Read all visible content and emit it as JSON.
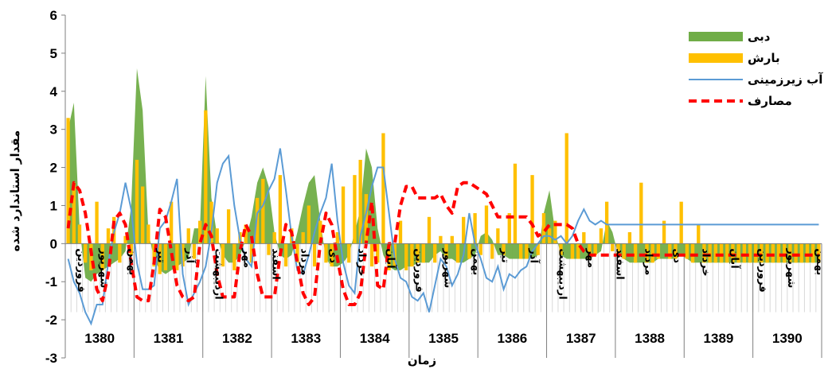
{
  "chart_data": {
    "type": "area",
    "xlabel": "زمان",
    "ylabel": "مقدار استاندارد شده",
    "ylim": [
      -3,
      6
    ],
    "yticks": [
      -3,
      -2,
      -1,
      0,
      1,
      2,
      3,
      4,
      5,
      6
    ],
    "months_per_year": 12,
    "years": [
      "1380",
      "1381",
      "1382",
      "1383",
      "1384",
      "1385",
      "1386",
      "1387",
      "1388",
      "1389",
      "1390"
    ],
    "month_labels": [
      {
        "index": 1,
        "text": "فروردین"
      },
      {
        "index": 5,
        "text": "شهریور"
      },
      {
        "index": 10,
        "text": "بهمن"
      },
      {
        "index": 15,
        "text": "تیر"
      },
      {
        "index": 20,
        "text": "آذر"
      },
      {
        "index": 25,
        "text": "اردیبهشت"
      },
      {
        "index": 30,
        "text": "مهر"
      },
      {
        "index": 35,
        "text": "اسفند"
      },
      {
        "index": 40,
        "text": "مرداد"
      },
      {
        "index": 45,
        "text": "دی"
      },
      {
        "index": 50,
        "text": "خرداد"
      },
      {
        "index": 55,
        "text": "آبان"
      },
      {
        "index": 60,
        "text": "فروردین"
      },
      {
        "index": 65,
        "text": "شهریور"
      },
      {
        "index": 70,
        "text": "بهمن"
      },
      {
        "index": 75,
        "text": "تیر"
      },
      {
        "index": 80,
        "text": "آذر"
      },
      {
        "index": 85,
        "text": "اردیبهشت"
      },
      {
        "index": 90,
        "text": "مهر"
      },
      {
        "index": 95,
        "text": "اسفند"
      },
      {
        "index": 100,
        "text": "مرداد"
      },
      {
        "index": 105,
        "text": "دی"
      },
      {
        "index": 110,
        "text": "خرداد"
      },
      {
        "index": 115,
        "text": "آبان"
      },
      {
        "index": 120,
        "text": "فروردین"
      },
      {
        "index": 125,
        "text": "شهریور"
      },
      {
        "index": 130,
        "text": "بهمن"
      }
    ],
    "series": [
      {
        "name": "دبی",
        "kind": "area",
        "color": "#70ad47",
        "values": [
          3.0,
          3.7,
          0.4,
          -0.9,
          -1.0,
          -0.8,
          -0.7,
          -0.6,
          -0.5,
          -0.4,
          -0.2,
          1.0,
          4.6,
          3.5,
          0.3,
          -0.4,
          -0.7,
          -0.8,
          -0.7,
          -0.6,
          -0.5,
          -0.4,
          0.4,
          0.4,
          4.4,
          1.2,
          0.2,
          -0.3,
          -0.5,
          -0.5,
          -0.3,
          0.1,
          0.7,
          1.6,
          2.0,
          1.5,
          0.3,
          -0.3,
          -0.4,
          -0.3,
          0.3,
          1.0,
          1.6,
          1.8,
          0.6,
          -0.4,
          -0.6,
          -0.6,
          -0.5,
          -0.3,
          0.3,
          0.9,
          2.5,
          2.0,
          0.4,
          -0.3,
          -0.6,
          -0.7,
          -0.7,
          -0.6,
          -0.6,
          -0.5,
          -0.5,
          -0.5,
          -0.3,
          -0.2,
          -0.4,
          -0.4,
          -0.5,
          -0.5,
          -0.4,
          -0.3,
          0.2,
          0.3,
          0.1,
          -0.3,
          -0.3,
          -0.4,
          -0.4,
          -0.4,
          -0.4,
          -0.4,
          -0.3,
          0.8,
          1.4,
          0.3,
          -0.3,
          -0.4,
          -0.4,
          -0.4,
          -0.4,
          -0.4,
          -0.3,
          -0.2,
          0.6,
          0.3,
          -0.3,
          -0.4,
          -0.5,
          -0.5,
          -0.5,
          -0.5,
          -0.5,
          -0.4,
          -0.4,
          -0.4,
          -0.4,
          -0.3,
          -0.4,
          -0.5,
          -0.5,
          -0.5,
          -0.5,
          -0.5,
          -0.5,
          -0.5,
          -0.5,
          -0.5,
          -0.5,
          -0.5,
          -0.5,
          -0.5,
          -0.5,
          -0.5,
          -0.5,
          -0.5,
          -0.5,
          -0.5,
          -0.5,
          -0.5,
          -0.5,
          -0.5
        ]
      },
      {
        "name": "بارش",
        "kind": "bar",
        "color": "#ffc000",
        "values": [
          3.3,
          1.6,
          0.5,
          -0.5,
          -0.7,
          1.1,
          -0.7,
          0.4,
          0.7,
          -0.5,
          0.2,
          -0.3,
          2.2,
          1.5,
          0.5,
          -0.6,
          -0.8,
          -0.7,
          1.1,
          -0.7,
          -0.6,
          0.4,
          -0.4,
          0.6,
          3.5,
          1.1,
          0.4,
          -0.6,
          0.9,
          -0.7,
          0.3,
          0.5,
          -0.5,
          1.2,
          1.7,
          -0.3,
          0.3,
          1.8,
          -0.6,
          0.4,
          -0.5,
          0.3,
          1.0,
          -0.6,
          0.6,
          -0.5,
          -0.6,
          0.3,
          1.5,
          -0.5,
          1.8,
          2.2,
          1.3,
          -0.6,
          -0.5,
          2.9,
          -0.7,
          -0.6,
          0.6,
          -0.7,
          -0.6,
          -0.5,
          -0.5,
          0.7,
          -0.5,
          0.2,
          -0.4,
          0.2,
          -0.5,
          0.7,
          -0.4,
          0.8,
          -0.3,
          1.0,
          -0.4,
          0.4,
          -0.3,
          0.8,
          2.1,
          -0.4,
          -0.4,
          1.8,
          -0.3,
          0.8,
          0.4,
          0.6,
          -0.3,
          2.9,
          -0.4,
          -0.4,
          0.3,
          -0.4,
          -0.3,
          0.4,
          1.1,
          -0.2,
          -0.3,
          -0.4,
          0.3,
          -0.5,
          1.6,
          -0.5,
          -0.5,
          -0.4,
          0.6,
          -0.4,
          -0.4,
          1.1,
          -0.4,
          -0.5,
          0.5,
          -0.5,
          -0.5,
          -0.5,
          -0.5,
          -0.5,
          -0.5,
          -0.5,
          -0.5,
          -0.5,
          -0.5,
          -0.5,
          -0.5,
          -0.5,
          -0.5,
          -0.5,
          -0.5,
          -0.5,
          -0.5,
          -0.5,
          -0.5,
          -0.5
        ]
      },
      {
        "name": "آب زیرزمینی",
        "kind": "line",
        "color": "#5b9bd5",
        "values": [
          -0.4,
          -1.0,
          -1.3,
          -1.8,
          -2.1,
          -1.6,
          -1.6,
          -0.5,
          0.3,
          0.8,
          1.6,
          0.9,
          -0.5,
          -1.2,
          -1.2,
          -1.1,
          0.4,
          0.6,
          1.1,
          1.7,
          -0.8,
          -1.6,
          -1.3,
          -1.0,
          -0.6,
          0.3,
          1.6,
          2.1,
          2.3,
          1.0,
          0.1,
          -0.4,
          -0.6,
          0.8,
          1.0,
          1.4,
          1.7,
          2.5,
          1.4,
          0.2,
          -0.7,
          -0.8,
          -0.3,
          0.3,
          0.8,
          1.2,
          2.1,
          0.6,
          -0.5,
          -1.1,
          -1.3,
          0.2,
          0.8,
          1.5,
          2.0,
          2.0,
          0.8,
          -0.4,
          -0.9,
          -1.0,
          -1.4,
          -1.5,
          -1.3,
          -1.8,
          -1.1,
          -0.4,
          -0.6,
          -1.1,
          -0.8,
          -0.3,
          0.8,
          0.0,
          -0.4,
          -0.9,
          -1.0,
          -0.6,
          -1.2,
          -0.8,
          -0.9,
          -0.7,
          -0.6,
          -0.2,
          0.0,
          0.2,
          0.2,
          0.1,
          0.2,
          0.0,
          0.2,
          0.6,
          0.9,
          0.6,
          0.5,
          0.6,
          0.5,
          0.5,
          0.5,
          0.5,
          0.5,
          0.5,
          0.5,
          0.5,
          0.5,
          0.5,
          0.5,
          0.5,
          0.5,
          0.5,
          0.5,
          0.5,
          0.5,
          0.5,
          0.5,
          0.5,
          0.5,
          0.5,
          0.5,
          0.5,
          0.5,
          0.5,
          0.5,
          0.5,
          0.5,
          0.5,
          0.5,
          0.5,
          0.5,
          0.5,
          0.5,
          0.5,
          0.5,
          0.5
        ]
      },
      {
        "name": "مصارف",
        "kind": "dashed-line",
        "color": "#ff0000",
        "values": [
          0.4,
          1.6,
          1.4,
          0.8,
          -0.2,
          -1.2,
          -1.5,
          -0.8,
          0.6,
          0.8,
          0.5,
          -0.5,
          -1.4,
          -1.5,
          -1.5,
          -0.5,
          0.9,
          0.7,
          -0.2,
          -1.1,
          -1.4,
          -1.5,
          -1.4,
          0.0,
          0.5,
          0.2,
          -0.8,
          -1.4,
          -1.4,
          -1.4,
          -0.2,
          0.5,
          0.2,
          -0.8,
          -1.4,
          -1.4,
          -1.4,
          -0.3,
          0.5,
          0.3,
          -0.5,
          -1.3,
          -1.6,
          -1.4,
          0.0,
          0.8,
          0.5,
          -0.4,
          -1.2,
          -1.6,
          -1.6,
          -1.3,
          0.0,
          1.1,
          -1.1,
          -1.2,
          0.0,
          0.0,
          1.0,
          1.5,
          1.5,
          1.2,
          1.2,
          1.2,
          1.2,
          1.3,
          1.0,
          0.8,
          1.5,
          1.6,
          1.6,
          1.5,
          1.4,
          1.3,
          1.0,
          0.7,
          0.7,
          0.7,
          0.7,
          0.7,
          0.7,
          0.5,
          0.2,
          0.3,
          0.5,
          0.5,
          0.5,
          0.5,
          0.4,
          0.0,
          -0.2,
          -0.3,
          -0.3,
          -0.3,
          -0.3,
          -0.3,
          -0.3,
          -0.3,
          -0.3,
          -0.3,
          -0.3,
          -0.3,
          -0.3,
          -0.3,
          -0.3,
          -0.3,
          -0.3,
          -0.3,
          -0.3,
          -0.3,
          -0.3,
          -0.3,
          -0.3,
          -0.3,
          -0.3,
          -0.3,
          -0.3,
          -0.3,
          -0.3,
          -0.3,
          -0.3,
          -0.3,
          -0.3,
          -0.3,
          -0.3,
          -0.3,
          -0.3,
          -0.3,
          -0.3,
          -0.3,
          -0.3,
          -0.3
        ]
      }
    ],
    "legend": {
      "placement": "top-right",
      "items": [
        {
          "label": "دبی",
          "swatch": "area",
          "color": "#70ad47"
        },
        {
          "label": "بارش",
          "swatch": "bar",
          "color": "#ffc000"
        },
        {
          "label": "آب زیرزمینی",
          "swatch": "line",
          "color": "#5b9bd5"
        },
        {
          "label": "مصارف",
          "swatch": "dashed",
          "color": "#ff0000"
        }
      ]
    },
    "grid": false
  }
}
